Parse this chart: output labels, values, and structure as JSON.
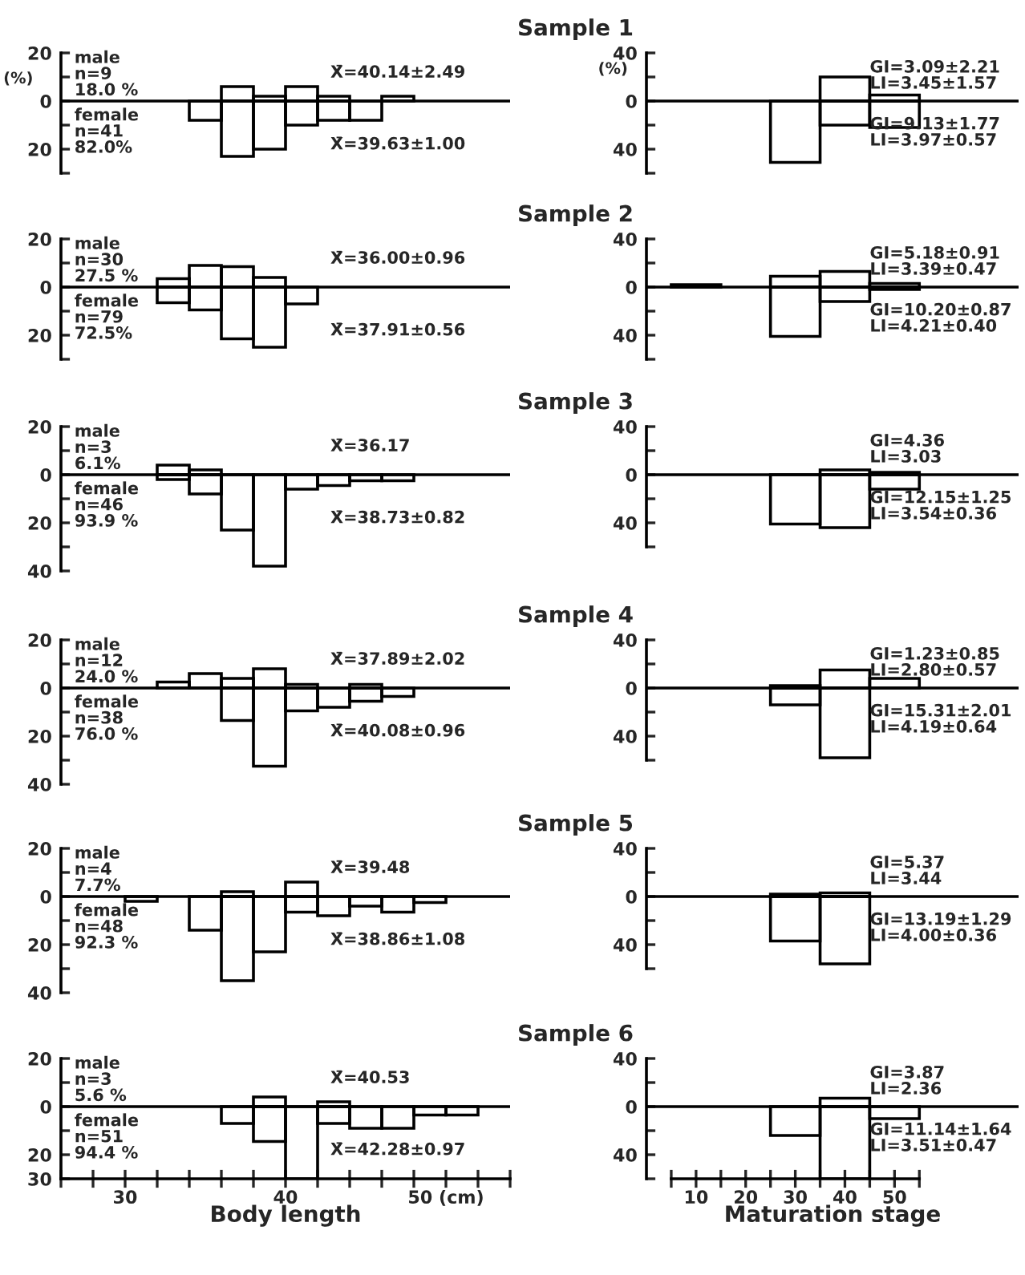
{
  "chart_data": [
    {
      "type": "histogram",
      "title": "Sample 1",
      "ylabel": "(%)",
      "tick_labels": "y",
      "xlim": [
        26,
        54
      ],
      "ylim": [
        -30,
        20
      ],
      "yticks": [
        20,
        {
          "value": 10,
          "label": null
        },
        0,
        {
          "value": -10,
          "label": null
        },
        {
          "value": -20,
          "label": "20"
        },
        {
          "value": -30,
          "label": null
        }
      ],
      "bins": [
        30,
        32,
        34,
        36,
        38,
        40,
        42,
        44,
        46,
        48,
        50,
        52
      ],
      "annotations": [
        "male\nn=9\n18.0 %",
        "female\nn=41\n82.0%",
        "X̄=40.14±2.49",
        "X̄=39.63±1.00"
      ],
      "series": [
        {
          "color": "#000000",
          "values": [
            null,
            null,
            null,
            6,
            2,
            6,
            2,
            null,
            2,
            null,
            null
          ]
        },
        {
          "color": "#000000",
          "values": [
            null,
            null,
            -8,
            -23,
            -20,
            -10,
            -8,
            -8,
            null,
            null,
            null
          ]
        }
      ]
    },
    {
      "type": "histogram",
      "ylabel": "(%)",
      "tick_labels": "y",
      "xlim": [
        0,
        75
      ],
      "ylim": [
        -60,
        40
      ],
      "yticks": [
        40,
        {
          "value": 20,
          "label": null
        },
        0,
        {
          "value": -20,
          "label": null
        },
        {
          "value": -40,
          "label": "40"
        },
        {
          "value": -60,
          "label": null
        }
      ],
      "bins": [
        5,
        15,
        25,
        35,
        45,
        55
      ],
      "annotations": [
        "GI=3.09±2.21\nLI=3.45±1.57",
        "GI=9.13±1.77\nLI=3.97±0.57"
      ],
      "series": [
        {
          "color": "#000000",
          "values": [
            null,
            null,
            null,
            20,
            5
          ]
        },
        {
          "color": "#000000",
          "values": [
            null,
            null,
            -51,
            -20,
            -22
          ]
        }
      ]
    },
    {
      "type": "histogram",
      "title": "Sample 2",
      "tick_labels": "y",
      "xlim": [
        26,
        54
      ],
      "ylim": [
        -30,
        20
      ],
      "yticks": [
        20,
        {
          "value": 10,
          "label": null
        },
        0,
        {
          "value": -10,
          "label": null
        },
        {
          "value": -20,
          "label": "20"
        },
        {
          "value": -30,
          "label": null
        }
      ],
      "bins": [
        30,
        32,
        34,
        36,
        38,
        40,
        42,
        44,
        46,
        48,
        50,
        52
      ],
      "annotations": [
        "male\nn=30\n27.5 %",
        "female\nn=79\n72.5%",
        "X̄=36.00±0.96",
        "X̄=37.91±0.56"
      ],
      "series": [
        {
          "color": "#000000",
          "values": [
            null,
            3.5,
            9,
            8.5,
            4,
            null,
            null,
            null,
            null,
            null,
            null
          ]
        },
        {
          "color": "#000000",
          "values": [
            null,
            -6.5,
            -9.5,
            -21.5,
            -25,
            -7,
            null,
            null,
            null,
            null,
            null
          ]
        }
      ]
    },
    {
      "type": "histogram",
      "tick_labels": "y",
      "xlim": [
        0,
        75
      ],
      "ylim": [
        -60,
        40
      ],
      "yticks": [
        40,
        {
          "value": 20,
          "label": null
        },
        0,
        {
          "value": -20,
          "label": null
        },
        {
          "value": -40,
          "label": "40"
        },
        {
          "value": -60,
          "label": null
        }
      ],
      "bins": [
        5,
        15,
        25,
        35,
        45,
        55
      ],
      "annotations": [
        "GI=5.18±0.91\nLI=3.39±0.47",
        "GI=10.20±0.87\nLI=4.21±0.40"
      ],
      "series": [
        {
          "color": "#000000",
          "values": [
            2,
            null,
            9,
            13,
            3
          ]
        },
        {
          "color": "#000000",
          "values": [
            null,
            null,
            -41,
            -12,
            -2
          ]
        }
      ]
    },
    {
      "type": "histogram",
      "title": "Sample 3",
      "tick_labels": "y",
      "xlim": [
        26,
        54
      ],
      "ylim": [
        -40,
        20
      ],
      "yticks": [
        20,
        {
          "value": 10,
          "label": null
        },
        0,
        {
          "value": -10,
          "label": null
        },
        {
          "value": -20,
          "label": "20"
        },
        {
          "value": -30,
          "label": null
        },
        {
          "value": -40,
          "label": "40"
        }
      ],
      "bins": [
        30,
        32,
        34,
        36,
        38,
        40,
        42,
        44,
        46,
        48,
        50,
        52
      ],
      "annotations": [
        "male\nn=3\n6.1%",
        "female\nn=46\n93.9 %",
        "X̄=36.17",
        "X̄=38.73±0.82"
      ],
      "series": [
        {
          "color": "#000000",
          "values": [
            null,
            4,
            2,
            null,
            null,
            null,
            null,
            null,
            null,
            null,
            null
          ]
        },
        {
          "color": "#000000",
          "values": [
            null,
            -2,
            -8,
            -23,
            -38,
            -6,
            -4.5,
            -2.5,
            -2.5,
            null,
            null
          ]
        }
      ]
    },
    {
      "type": "histogram",
      "tick_labels": "y",
      "xlim": [
        0,
        75
      ],
      "ylim": [
        -60,
        40
      ],
      "yticks": [
        40,
        {
          "value": 20,
          "label": null
        },
        0,
        {
          "value": -20,
          "label": null
        },
        {
          "value": -40,
          "label": "40"
        },
        {
          "value": -60,
          "label": null
        }
      ],
      "bins": [
        5,
        15,
        25,
        35,
        45,
        55
      ],
      "annotations": [
        "GI=4.36\nLI=3.03",
        "GI=12.15±1.25\nLI=3.54±0.36"
      ],
      "series": [
        {
          "color": "#000000",
          "values": [
            null,
            null,
            null,
            4,
            2
          ]
        },
        {
          "color": "#000000",
          "values": [
            null,
            null,
            -41,
            -44,
            -12
          ]
        }
      ]
    },
    {
      "type": "histogram",
      "title": "Sample 4",
      "tick_labels": "y",
      "xlim": [
        26,
        54
      ],
      "ylim": [
        -40,
        20
      ],
      "yticks": [
        20,
        {
          "value": 10,
          "label": null
        },
        0,
        {
          "value": -10,
          "label": null
        },
        {
          "value": -20,
          "label": "20"
        },
        {
          "value": -30,
          "label": null
        },
        {
          "value": -40,
          "label": "40"
        }
      ],
      "bins": [
        30,
        32,
        34,
        36,
        38,
        40,
        42,
        44,
        46,
        48,
        50,
        52
      ],
      "annotations": [
        "male\nn=12\n24.0 %",
        "female\nn=38\n76.0 %",
        "X̄=37.89±2.02",
        "X̄=40.08±0.96"
      ],
      "series": [
        {
          "color": "#000000",
          "values": [
            null,
            2.5,
            6,
            4,
            8,
            1.5,
            null,
            1.5,
            null,
            null,
            null
          ]
        },
        {
          "color": "#000000",
          "values": [
            null,
            null,
            null,
            -13.5,
            -32.5,
            -9.5,
            -8,
            -5.5,
            -3.5,
            null,
            null
          ]
        }
      ]
    },
    {
      "type": "histogram",
      "tick_labels": "y",
      "xlim": [
        0,
        75
      ],
      "ylim": [
        -60,
        40
      ],
      "yticks": [
        40,
        {
          "value": 20,
          "label": null
        },
        0,
        {
          "value": -20,
          "label": null
        },
        {
          "value": -40,
          "label": "40"
        },
        {
          "value": -60,
          "label": null
        }
      ],
      "bins": [
        5,
        15,
        25,
        35,
        45,
        55
      ],
      "annotations": [
        "GI=1.23±0.85\nLI=2.80±0.57",
        "GI=15.31±2.01\nLI=4.19±0.64"
      ],
      "series": [
        {
          "color": "#000000",
          "values": [
            null,
            null,
            2,
            15,
            8
          ]
        },
        {
          "color": "#000000",
          "values": [
            null,
            null,
            -14,
            -58,
            null
          ]
        }
      ]
    },
    {
      "type": "histogram",
      "title": "Sample 5",
      "tick_labels": "y",
      "xlim": [
        26,
        54
      ],
      "ylim": [
        -40,
        20
      ],
      "yticks": [
        20,
        {
          "value": 10,
          "label": null
        },
        0,
        {
          "value": -10,
          "label": null
        },
        {
          "value": -20,
          "label": "20"
        },
        {
          "value": -30,
          "label": null
        },
        {
          "value": -40,
          "label": "40"
        }
      ],
      "bins": [
        30,
        32,
        34,
        36,
        38,
        40,
        42,
        44,
        46,
        48,
        50,
        52
      ],
      "annotations": [
        "male\nn=4\n7.7%",
        "female\nn=48\n92.3 %",
        "X̄=39.48",
        "X̄=38.86±1.08"
      ],
      "series": [
        {
          "color": "#000000",
          "values": [
            null,
            null,
            null,
            2,
            null,
            6,
            null,
            null,
            null,
            null,
            null
          ]
        },
        {
          "color": "#000000",
          "values": [
            -2,
            null,
            -14,
            -35,
            -23,
            -6.5,
            -8,
            -4,
            -6.5,
            -2.5,
            null
          ]
        }
      ]
    },
    {
      "type": "histogram",
      "tick_labels": "y",
      "xlim": [
        0,
        75
      ],
      "ylim": [
        -60,
        40
      ],
      "yticks": [
        40,
        {
          "value": 20,
          "label": null
        },
        0,
        {
          "value": -20,
          "label": null
        },
        {
          "value": -40,
          "label": "40"
        },
        {
          "value": -60,
          "label": null
        }
      ],
      "bins": [
        5,
        15,
        25,
        35,
        45,
        55
      ],
      "annotations": [
        "GI=5.37\nLI=3.44",
        "GI=13.19±1.29\nLI=4.00±0.36"
      ],
      "series": [
        {
          "color": "#000000",
          "values": [
            null,
            null,
            2,
            3,
            null
          ]
        },
        {
          "color": "#000000",
          "values": [
            null,
            null,
            -37,
            -56,
            null
          ]
        }
      ]
    },
    {
      "type": "histogram",
      "title": "Sample 6",
      "xlabel": "Body length",
      "xlim": [
        26,
        54
      ],
      "ylim": [
        -30,
        20
      ],
      "yticks": [
        20,
        {
          "value": 10,
          "label": null
        },
        0,
        {
          "value": -10,
          "label": null
        },
        {
          "value": -20,
          "label": "20"
        },
        {
          "value": -30,
          "label": "30"
        }
      ],
      "xticks": [
        {
          "value": 26,
          "label": null
        },
        {
          "value": 28,
          "label": null
        },
        30,
        {
          "value": 32,
          "label": null
        },
        {
          "value": 34,
          "label": null
        },
        {
          "value": 36,
          "label": null
        },
        {
          "value": 38,
          "label": null
        },
        40,
        {
          "value": 42,
          "label": null
        },
        {
          "value": 44,
          "label": null
        },
        {
          "value": 46,
          "label": null
        },
        {
          "value": 48,
          "label": null
        },
        {
          "value": 50,
          "label": "50 (cm)"
        },
        {
          "value": 52,
          "label": null
        },
        {
          "value": 54,
          "label": null
        }
      ],
      "bins": [
        30,
        32,
        34,
        36,
        38,
        40,
        42,
        44,
        46,
        48,
        50,
        52
      ],
      "annotations": [
        "male\nn=3\n5.6 %",
        "female\nn=51\n94.4 %",
        "X̄=40.53",
        "X̄=42.28±0.97"
      ],
      "series": [
        {
          "color": "#000000",
          "values": [
            null,
            null,
            null,
            null,
            4,
            null,
            2,
            null,
            null,
            null,
            null
          ]
        },
        {
          "color": "#000000",
          "values": [
            null,
            null,
            null,
            -7,
            -14.5,
            -30,
            -7,
            -9,
            -9,
            -3.5,
            -3.5
          ]
        }
      ]
    },
    {
      "type": "histogram",
      "xlabel": "Maturation stage",
      "xlim": [
        0,
        75
      ],
      "ylim": [
        -60,
        40
      ],
      "yticks": [
        40,
        {
          "value": 20,
          "label": null
        },
        0,
        {
          "value": -20,
          "label": null
        },
        {
          "value": -40,
          "label": "40"
        },
        {
          "value": -60,
          "label": null
        }
      ],
      "xticks": [
        {
          "value": 5,
          "label": null
        },
        10,
        {
          "value": 15,
          "label": null
        },
        20,
        {
          "value": 25,
          "label": null
        },
        30,
        {
          "value": 35,
          "label": null
        },
        40,
        {
          "value": 45,
          "label": null
        },
        50,
        {
          "value": 55,
          "label": null
        }
      ],
      "bins": [
        5,
        15,
        25,
        35,
        45,
        55
      ],
      "annotations": [
        "GI=3.87\nLI=2.36",
        "GI=11.14±1.64\nLI=3.51±0.47"
      ],
      "series": [
        {
          "color": "#000000",
          "values": [
            null,
            null,
            null,
            7,
            null
          ]
        },
        {
          "color": "#000000",
          "values": [
            null,
            null,
            -24,
            -60,
            -10
          ]
        }
      ]
    }
  ]
}
